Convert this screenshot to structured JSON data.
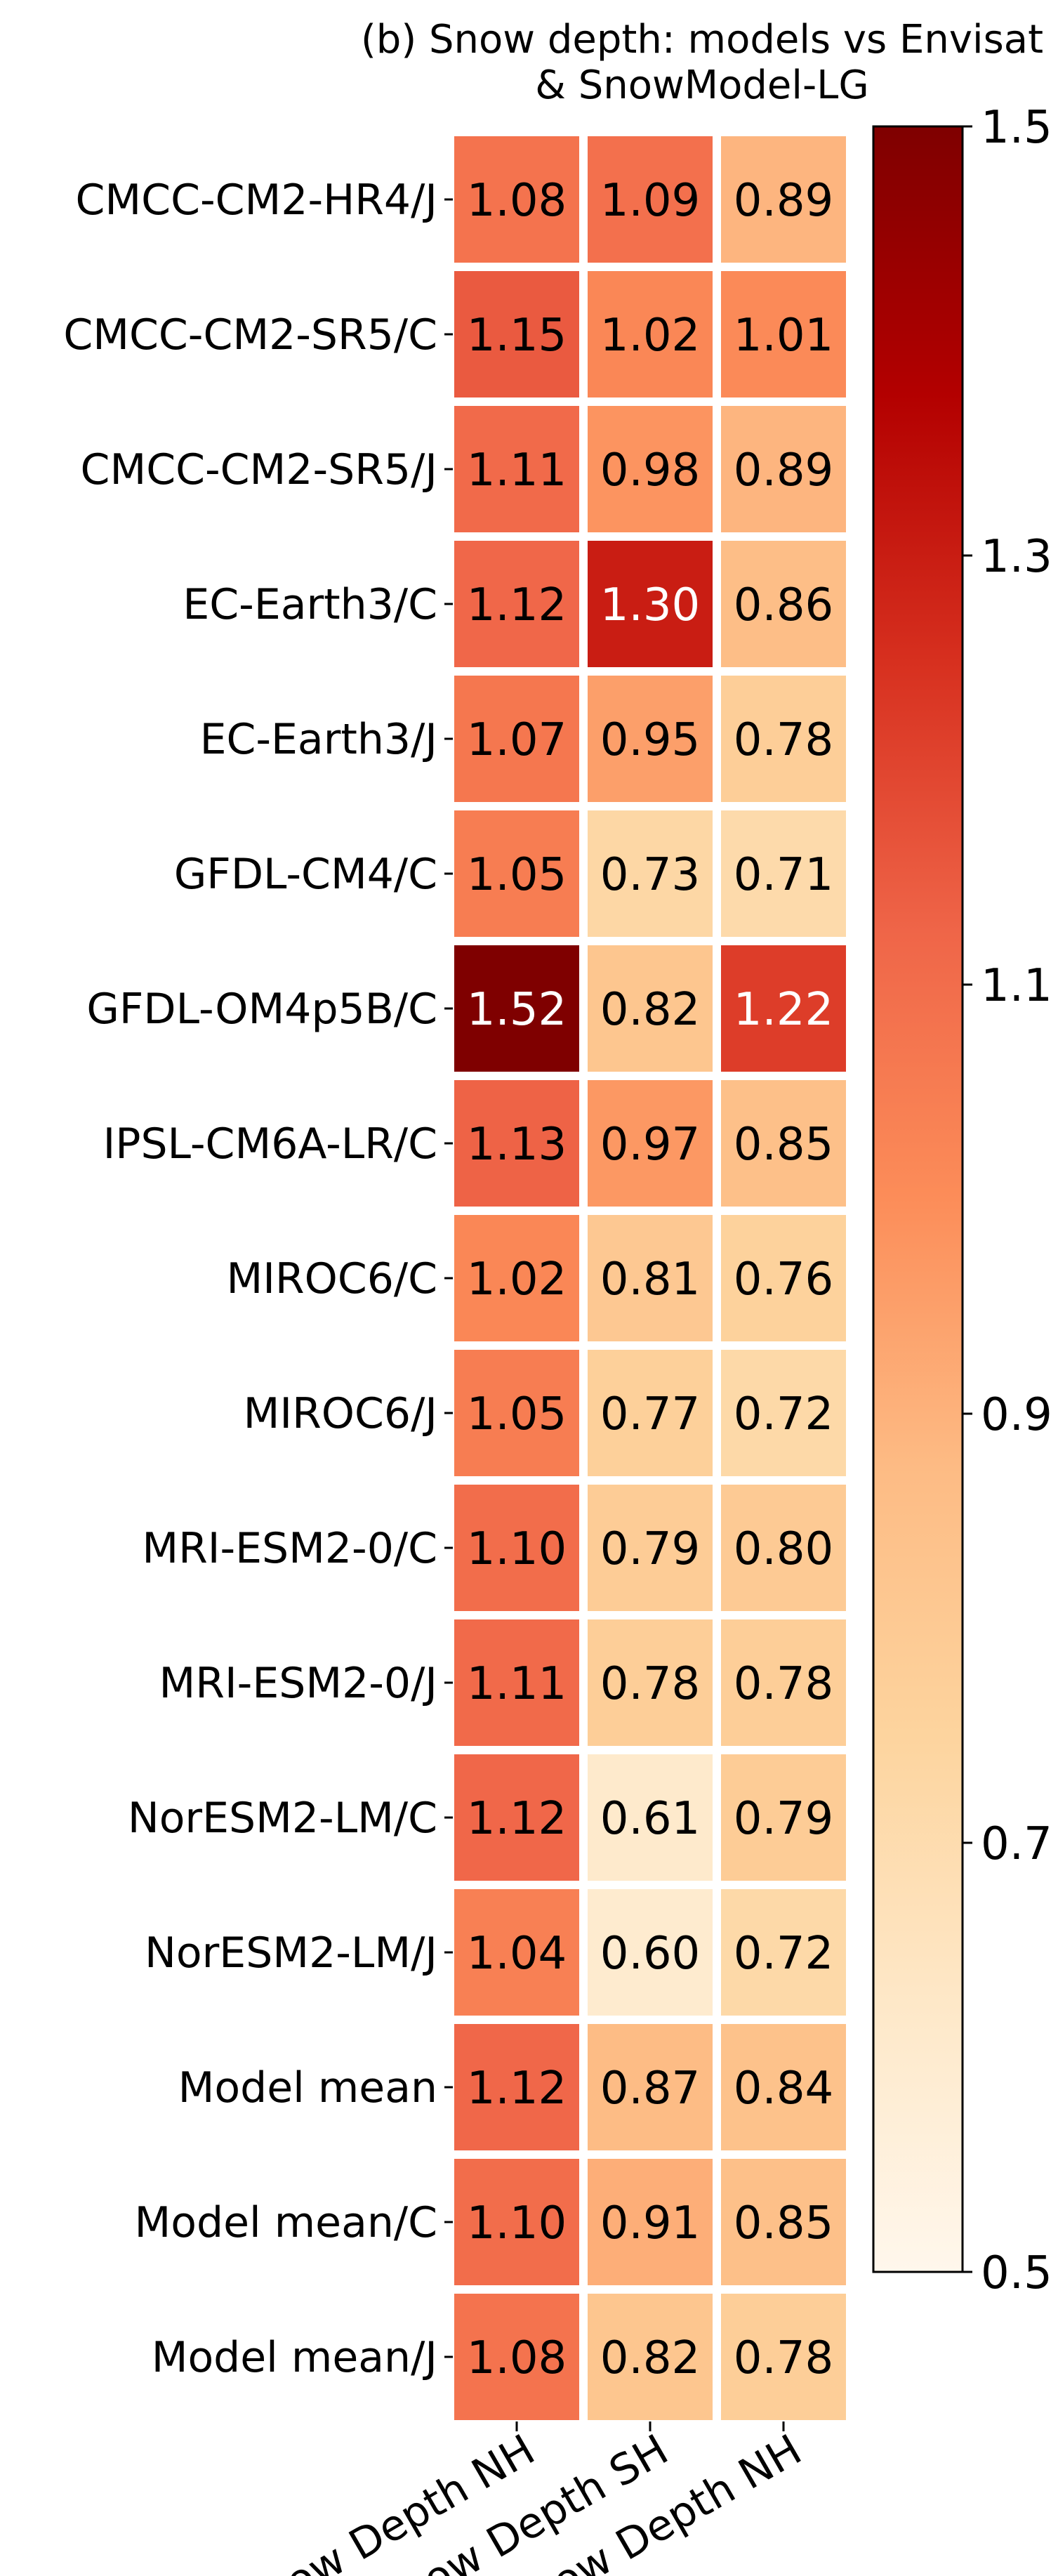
{
  "chart_data": {
    "type": "heatmap",
    "title_lines": [
      "(b) Snow depth: models vs Envisat",
      "& SnowModel-LG"
    ],
    "rows": [
      "CMCC-CM2-HR4/J",
      "CMCC-CM2-SR5/C",
      "CMCC-CM2-SR5/J",
      "EC-Earth3/C",
      "EC-Earth3/J",
      "GFDL-CM4/C",
      "GFDL-OM4p5B/C",
      "IPSL-CM6A-LR/C",
      "MIROC6/C",
      "MIROC6/J",
      "MRI-ESM2-0/C",
      "MRI-ESM2-0/J",
      "NorESM2-LM/C",
      "NorESM2-LM/J",
      "Model mean",
      "Model mean/C",
      "Model mean/J"
    ],
    "columns": [
      "Mean Snow Depth NH",
      "Mean Snow Depth SH",
      "Mean Snow Depth NH"
    ],
    "values": [
      [
        1.08,
        1.09,
        0.89
      ],
      [
        1.15,
        1.02,
        1.01
      ],
      [
        1.11,
        0.98,
        0.89
      ],
      [
        1.12,
        1.3,
        0.86
      ],
      [
        1.07,
        0.95,
        0.78
      ],
      [
        1.05,
        0.73,
        0.71
      ],
      [
        1.52,
        0.82,
        1.22
      ],
      [
        1.13,
        0.97,
        0.85
      ],
      [
        1.02,
        0.81,
        0.76
      ],
      [
        1.05,
        0.77,
        0.72
      ],
      [
        1.1,
        0.79,
        0.8
      ],
      [
        1.11,
        0.78,
        0.78
      ],
      [
        1.12,
        0.61,
        0.79
      ],
      [
        1.04,
        0.6,
        0.72
      ],
      [
        1.12,
        0.87,
        0.84
      ],
      [
        1.1,
        0.91,
        0.85
      ],
      [
        1.08,
        0.82,
        0.78
      ]
    ],
    "value_labels": [
      [
        "1.08",
        "1.09",
        "0.89"
      ],
      [
        "1.15",
        "1.02",
        "1.01"
      ],
      [
        "1.11",
        "0.98",
        "0.89"
      ],
      [
        "1.12",
        "1.30",
        "0.86"
      ],
      [
        "1.07",
        "0.95",
        "0.78"
      ],
      [
        "1.05",
        "0.73",
        "0.71"
      ],
      [
        "1.52",
        "0.82",
        "1.22"
      ],
      [
        "1.13",
        "0.97",
        "0.85"
      ],
      [
        "1.02",
        "0.81",
        "0.76"
      ],
      [
        "1.05",
        "0.77",
        "0.72"
      ],
      [
        "1.10",
        "0.79",
        "0.80"
      ],
      [
        "1.11",
        "0.78",
        "0.78"
      ],
      [
        "1.12",
        "0.61",
        "0.79"
      ],
      [
        "1.04",
        "0.60",
        "0.72"
      ],
      [
        "1.12",
        "0.87",
        "0.84"
      ],
      [
        "1.10",
        "0.91",
        "0.85"
      ],
      [
        "1.08",
        "0.82",
        "0.78"
      ]
    ],
    "colormap": "OrRd",
    "colorbar": {
      "vmin": 0.5,
      "vmax": 1.5,
      "ticks": [
        0.5,
        0.7,
        0.9,
        1.1,
        1.3,
        1.5
      ],
      "tick_labels": [
        "0.5",
        "0.7",
        "0.9",
        "1.1",
        "1.3",
        "1.5"
      ],
      "placement": "right"
    },
    "colors": {
      "cmap_stops": [
        "#fff7ec",
        "#fee8c8",
        "#fdd49e",
        "#fdbb84",
        "#fc8d59",
        "#ef6548",
        "#d7301f",
        "#b30000",
        "#7f0000"
      ],
      "cell_border": "#ffffff",
      "text_dark": "#000000",
      "text_light": "#ffffff"
    },
    "light_text_threshold": 1.2
  }
}
